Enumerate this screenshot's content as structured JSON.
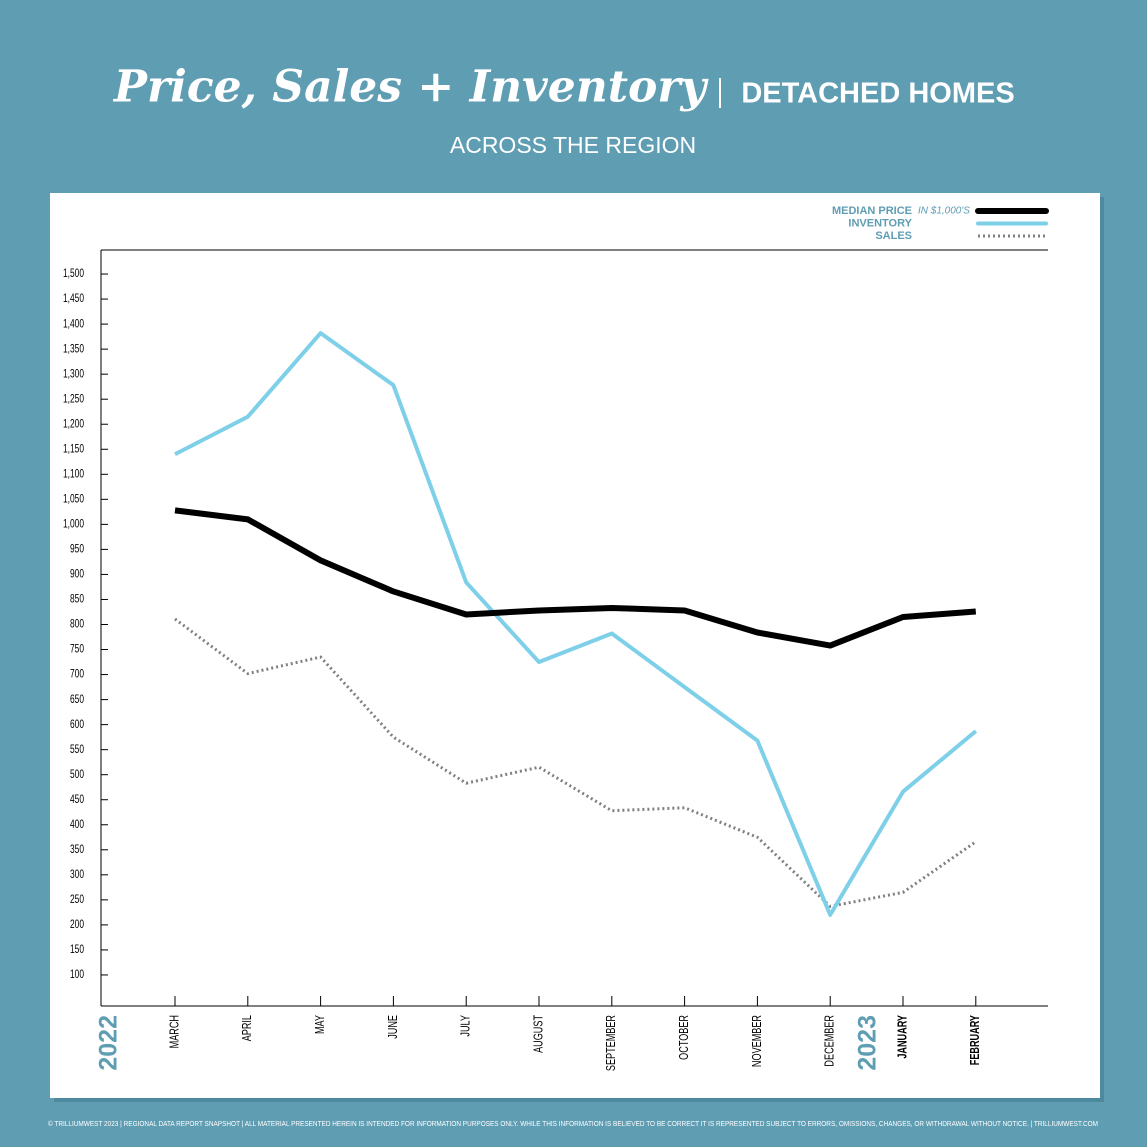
{
  "chart_data": {
    "type": "line",
    "title": "Price, Sales + Inventory",
    "subtitle": "DETACHED HOMES",
    "caption": "ACROSS THE REGION",
    "legend_note": "IN $1,000'S",
    "legend_position": "upper right",
    "year_labels": [
      "2022",
      "2023"
    ],
    "categories": [
      "MARCH",
      "APRIL",
      "MAY",
      "JUNE",
      "JULY",
      "AUGUST",
      "SEPTEMBER",
      "OCTOBER",
      "NOVEMBER",
      "DECEMBER",
      "JANUARY",
      "FEBRUARY"
    ],
    "series": [
      {
        "name": "MEDIAN PRICE",
        "color": "#000000",
        "values": [
          1028,
          1010,
          928,
          866,
          820,
          828,
          833,
          828,
          784,
          758,
          815,
          826
        ]
      },
      {
        "name": "INVENTORY",
        "color": "#7ecfe8",
        "values": [
          1140,
          1215,
          1382,
          1278,
          884,
          725,
          782,
          675,
          568,
          220,
          466,
          587
        ]
      },
      {
        "name": "SALES",
        "color": "#808080",
        "values": [
          811,
          702,
          735,
          575,
          483,
          515,
          428,
          434,
          375,
          237,
          265,
          366
        ]
      }
    ],
    "ylim": [
      38,
      1548
    ],
    "yticks": [
      100,
      150,
      200,
      250,
      300,
      350,
      400,
      450,
      500,
      550,
      600,
      650,
      700,
      750,
      800,
      850,
      900,
      950,
      {
        "value": 1000,
        "label": "1,000"
      },
      {
        "value": 1050,
        "label": "1,050"
      },
      {
        "value": 1100,
        "label": "1,100"
      },
      {
        "value": 1150,
        "label": "1,150"
      },
      {
        "value": 1200,
        "label": "1,200"
      },
      {
        "value": 1250,
        "label": "1,250"
      },
      {
        "value": 1300,
        "label": "1,300"
      },
      {
        "value": 1350,
        "label": "1,350"
      },
      {
        "value": 1400,
        "label": "1,400"
      },
      {
        "value": 1450,
        "label": "1,450"
      },
      {
        "value": 1500,
        "label": "1,500"
      }
    ],
    "grid": false,
    "footer": "© TRILLIUMWEST 2023  |  REGIONAL DATA REPORT SNAPSHOT  |  ALL MATERIAL PRESENTED HEREIN IS INTENDED FOR INFORMATION PURPOSES ONLY. WHILE THIS INFORMATION IS BELIEVED TO BE CORRECT IT IS REPRESENTED SUBJECT TO ERRORS, OMISSIONS, CHANGES, OR WITHDRAWAL WITHOUT NOTICE.  |  TRILLIUMWEST.COM"
  }
}
